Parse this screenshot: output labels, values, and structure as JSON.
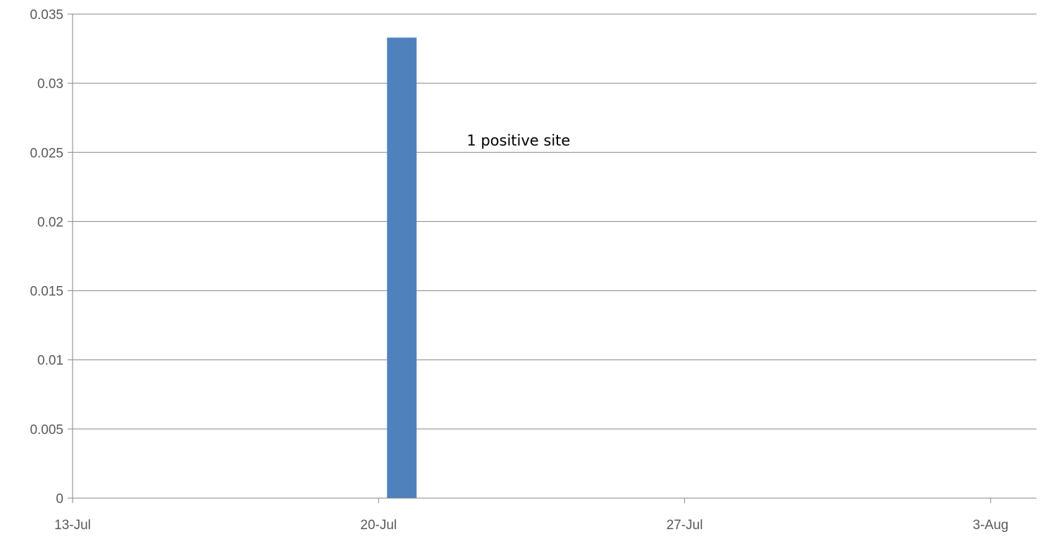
{
  "chart_data": {
    "type": "bar",
    "x_axis": {
      "type": "date",
      "range": [
        "13-Jul",
        "3-Aug"
      ],
      "tick_labels": [
        "13-Jul",
        "20-Jul",
        "27-Jul",
        "3-Aug"
      ],
      "tick_days": [
        0,
        7,
        14,
        21
      ]
    },
    "y_axis": {
      "range": [
        0,
        0.035
      ],
      "tick_labels": [
        "0",
        "0.005",
        "0.01",
        "0.015",
        "0.02",
        "0.025",
        "0.03",
        "0.035"
      ],
      "tick_values": [
        0,
        0.005,
        0.01,
        0.015,
        0.02,
        0.025,
        0.03,
        0.035
      ]
    },
    "bars": [
      {
        "x": "20-Jul",
        "value": 0.0333
      }
    ],
    "annotations": [
      {
        "text": "1 positive site",
        "x": "21-Jul",
        "y": 0.0255
      }
    ],
    "grid": "horizontal",
    "legend": "none",
    "colors": {
      "bar": "#4f81bd",
      "grid": "#868686",
      "axis": "#868686",
      "tick_text": "#595959"
    },
    "title": "",
    "xlabel": "",
    "ylabel": ""
  }
}
